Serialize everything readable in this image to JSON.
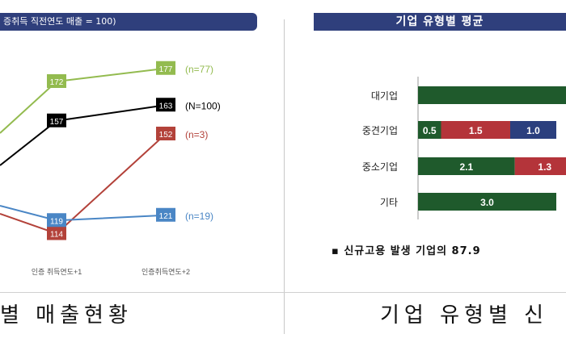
{
  "left_chart": {
    "header": "증취득 직전연도 매출 = 100)",
    "caption": "별  매출현황",
    "chart_data": {
      "type": "line",
      "x": [
        "",
        "인증 취득연도+1",
        "인증취득연도+2"
      ],
      "series": [
        {
          "name": "(n=77)",
          "values": [
            null,
            172,
            177
          ],
          "color": "#93bb4f"
        },
        {
          "name": "(N=100)",
          "values": [
            null,
            157,
            163
          ],
          "color": "#000000"
        },
        {
          "name": "(n=3)",
          "values": [
            null,
            114,
            152
          ],
          "color": "#b3423a"
        },
        {
          "name": "(n=19)",
          "values": [
            null,
            119,
            121
          ],
          "color": "#4a86c5"
        }
      ]
    }
  },
  "right_chart": {
    "header": "기업 유형별 평균",
    "caption": "기업 유형별 신",
    "note": "▪ 신규고용 발생 기업의 87.9",
    "chart_data": {
      "type": "bar",
      "orientation": "horizontal-stacked",
      "categories": [
        "대기업",
        "중견기업",
        "중소기업",
        "기타"
      ],
      "segments": [
        {
          "values": [
            null,
            0.5,
            2.1,
            3.0
          ],
          "color": "#1f5a2c"
        },
        {
          "values": [
            null,
            1.5,
            1.3,
            null
          ],
          "color": "#b4343a"
        },
        {
          "values": [
            null,
            1.0,
            null,
            null
          ],
          "color": "#2b3f7e"
        }
      ]
    }
  }
}
